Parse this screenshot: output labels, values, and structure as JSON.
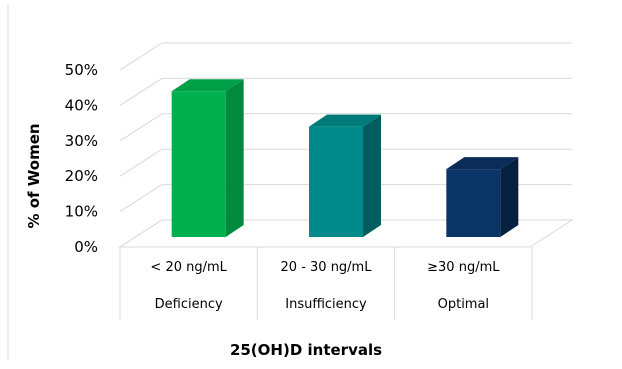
{
  "chart_data": {
    "type": "bar",
    "title": "",
    "categories": [
      [
        "< 20 ng/mL",
        "Deficiency"
      ],
      [
        "20 - 30 ng/mL",
        "Insufficiency"
      ],
      [
        "≥30 ng/mL",
        "Optimal"
      ]
    ],
    "values": [
      44,
      34,
      22
    ],
    "xlabel": "25(OH)D intervals",
    "ylabel": "% of Women",
    "ylim": [
      0,
      50
    ],
    "yticks": [
      "0%",
      "10%",
      "20%",
      "30%",
      "40%",
      "50%"
    ],
    "grid": true,
    "legend": "none",
    "bar_colors": [
      {
        "front": "#00b04f",
        "top": "#00a048",
        "side": "#008a3b"
      },
      {
        "front": "#008b8a",
        "top": "#007a79",
        "side": "#005f5e"
      },
      {
        "front": "#0b3466",
        "top": "#0a2c56",
        "side": "#06203f"
      }
    ]
  }
}
